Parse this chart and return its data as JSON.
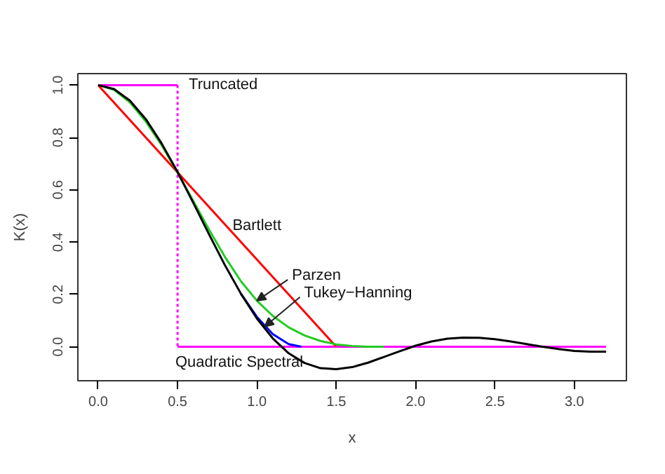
{
  "chart_data": {
    "type": "line",
    "xlabel": "x",
    "ylabel": "K(x)",
    "xlim": [
      -0.128,
      3.328
    ],
    "ylim": [
      -0.13,
      1.044
    ],
    "xticks": [
      {
        "value": 0,
        "label": "0.0"
      },
      0.5,
      {
        "value": 1,
        "label": "1.0"
      },
      1.5,
      {
        "value": 2,
        "label": "2.0"
      },
      2.5,
      {
        "value": 3,
        "label": "3.0"
      }
    ],
    "yticks": [
      {
        "value": 0,
        "label": "0.0"
      },
      0.2,
      0.4,
      0.6,
      0.8,
      {
        "value": 1,
        "label": "1.0"
      }
    ],
    "grid": false,
    "marker": "none",
    "line_style": "solid",
    "series": [
      {
        "color": "#ff00ff",
        "x": [
          0,
          0.5
        ],
        "values": [
          1,
          1
        ]
      },
      {
        "color": "#ff00ff",
        "x": [
          0.5,
          3.2
        ],
        "values": [
          0,
          0
        ]
      },
      {
        "color": "#ff00ff",
        "line_style": "dotted",
        "x": [
          0.5,
          0.5
        ],
        "values": [
          1,
          0
        ]
      },
      {
        "color": "#ff0000",
        "x": [
          0,
          1.5
        ],
        "values": [
          1,
          0
        ]
      },
      {
        "color": "#22cc22",
        "x": [
          0,
          0.1,
          0.2,
          0.3,
          0.4,
          0.5,
          0.6,
          0.7,
          0.8,
          0.9,
          1.0,
          1.1,
          1.2,
          1.3,
          1.4,
          1.5,
          1.6,
          1.7,
          1.8
        ],
        "values": [
          1,
          0.982,
          0.934,
          0.861,
          0.77,
          0.666,
          0.556,
          0.446,
          0.342,
          0.25,
          0.176,
          0.118,
          0.074,
          0.043,
          0.022,
          0.009,
          0.003,
          0.0,
          0
        ]
      },
      {
        "color": "#0000ff",
        "x": [
          0.9,
          1.0,
          1.1,
          1.2,
          1.28
        ],
        "values": [
          0.202,
          0.114,
          0.048,
          0.01,
          0
        ]
      },
      {
        "color": "#000000",
        "x": [
          0,
          0.1,
          0.2,
          0.3,
          0.4,
          0.5,
          0.6,
          0.7,
          0.8,
          0.9,
          1.0,
          1.1,
          1.2,
          1.3,
          1.4,
          1.5,
          1.6,
          1.7,
          1.8,
          1.9,
          2.0,
          2.1,
          2.2,
          2.3,
          2.4,
          2.5,
          2.6,
          2.7,
          2.8,
          2.9,
          3.0,
          3.1,
          3.2
        ],
        "values": [
          1,
          0.985,
          0.941,
          0.87,
          0.777,
          0.668,
          0.549,
          0.428,
          0.31,
          0.202,
          0.108,
          0.032,
          -0.025,
          -0.062,
          -0.082,
          -0.086,
          -0.078,
          -0.061,
          -0.039,
          -0.017,
          0.004,
          0.02,
          0.031,
          0.035,
          0.034,
          0.029,
          0.02,
          0.01,
          0.0,
          -0.009,
          -0.016,
          -0.019,
          -0.019
        ]
      }
    ],
    "annotations": [
      {
        "text": "Truncated",
        "x": 0.5,
        "y": 1.0
      },
      {
        "text": "Bartlett",
        "x": 1.0,
        "y": 0.333
      },
      {
        "text": "Parzen",
        "x": 1.0,
        "y": 0.176
      },
      {
        "text": "Tukey−Hanning",
        "x": 1.05,
        "y": 0.077
      },
      "Quadratic Spectral"
    ]
  }
}
